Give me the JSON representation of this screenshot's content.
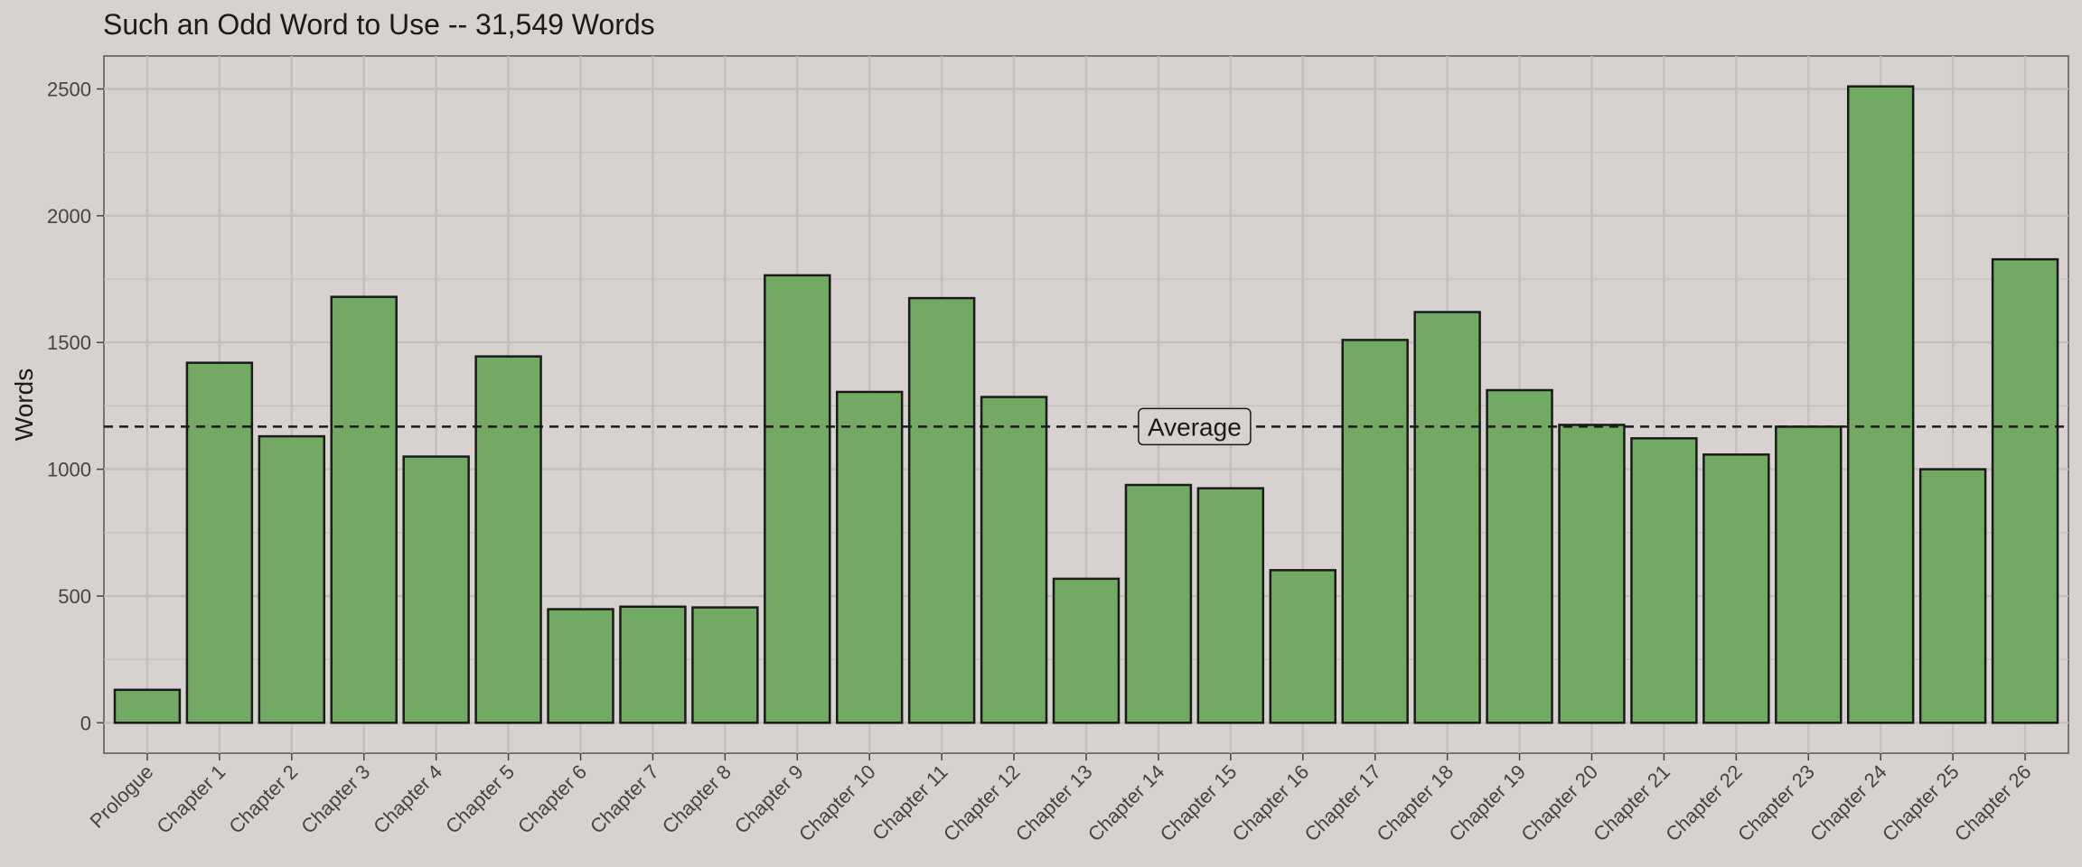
{
  "chart_data": {
    "type": "bar",
    "title": "Such an Odd Word to Use -- 31,549 Words",
    "xlabel": "",
    "ylabel": "Words",
    "ylim": [
      -120,
      2630
    ],
    "yticks": [
      0,
      500,
      1000,
      1500,
      2000,
      2500
    ],
    "grid": true,
    "categories": [
      "Prologue",
      "Chapter 1",
      "Chapter 2",
      "Chapter 3",
      "Chapter 4",
      "Chapter 5",
      "Chapter 6",
      "Chapter 7",
      "Chapter 8",
      "Chapter 9",
      "Chapter 10",
      "Chapter 11",
      "Chapter 12",
      "Chapter 13",
      "Chapter 14",
      "Chapter 15",
      "Chapter 16",
      "Chapter 17",
      "Chapter 18",
      "Chapter 19",
      "Chapter 20",
      "Chapter 21",
      "Chapter 22",
      "Chapter 23",
      "Chapter 24",
      "Chapter 25",
      "Chapter 26"
    ],
    "values": [
      130,
      1420,
      1130,
      1680,
      1050,
      1445,
      448,
      458,
      455,
      1765,
      1305,
      1675,
      1285,
      568,
      938,
      925,
      602,
      1510,
      1620,
      1312,
      1175,
      1122,
      1058,
      1168,
      2510,
      1000,
      1828
    ],
    "average": 1168,
    "average_label": "Average",
    "colors": {
      "bar": "#72aa63",
      "bar_edge": "#1a1a1a",
      "background": "#d7d2d0",
      "grid": "#c3bdbb"
    }
  }
}
